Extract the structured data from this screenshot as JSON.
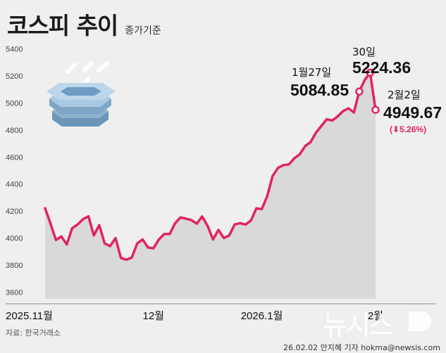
{
  "title": "코스피 추이",
  "subtitle": "종가기준",
  "source": "자료: 한국거래소",
  "credit": "26.02.02 안지혜 기자 hokma@newsis.com",
  "watermark": "뉴시스",
  "colors": {
    "line": "#e0245e",
    "area": "#d9d9d9",
    "background": "#efefef"
  },
  "icon": "stacked-coins-icon",
  "annotations": {
    "jan27": {
      "label": "1월27일",
      "value": "5084.85"
    },
    "jan30": {
      "label": "30일",
      "value": "5224.36"
    },
    "feb2": {
      "label": "2월2일",
      "value": "4949.67",
      "change": "(⬇5.26%)"
    }
  },
  "chart_data": {
    "type": "area",
    "title": "코스피 추이",
    "subtitle": "종가기준",
    "ylim": [
      3550,
      5450
    ],
    "yticks": [
      "3600",
      "3800",
      "4000",
      "4200",
      "4400",
      "4600",
      "4800",
      "5000",
      "5200",
      "5400"
    ],
    "xtick_labels": [
      "2025.11월",
      "12월",
      "2026.1월",
      "2월"
    ],
    "grid": false,
    "series": [
      {
        "values": [
          4221,
          4107,
          3986,
          4012,
          3953,
          4073,
          4100,
          4140,
          4161,
          4020,
          4096,
          3960,
          3940,
          4000,
          3853,
          3840,
          3855,
          3960,
          3990,
          3930,
          3924,
          3990,
          4030,
          4030,
          4110,
          4153,
          4144,
          4133,
          4107,
          4160,
          4090,
          3990,
          4060,
          4000,
          4020,
          4101,
          4110,
          4100,
          4130,
          4220,
          4214,
          4310,
          4460,
          4520,
          4540,
          4545,
          4590,
          4620,
          4680,
          4710,
          4780,
          4830,
          4880,
          4870,
          4900,
          4940,
          4960,
          4930,
          5084.85,
          5170,
          5224.36,
          4949.67
        ]
      }
    ]
  }
}
